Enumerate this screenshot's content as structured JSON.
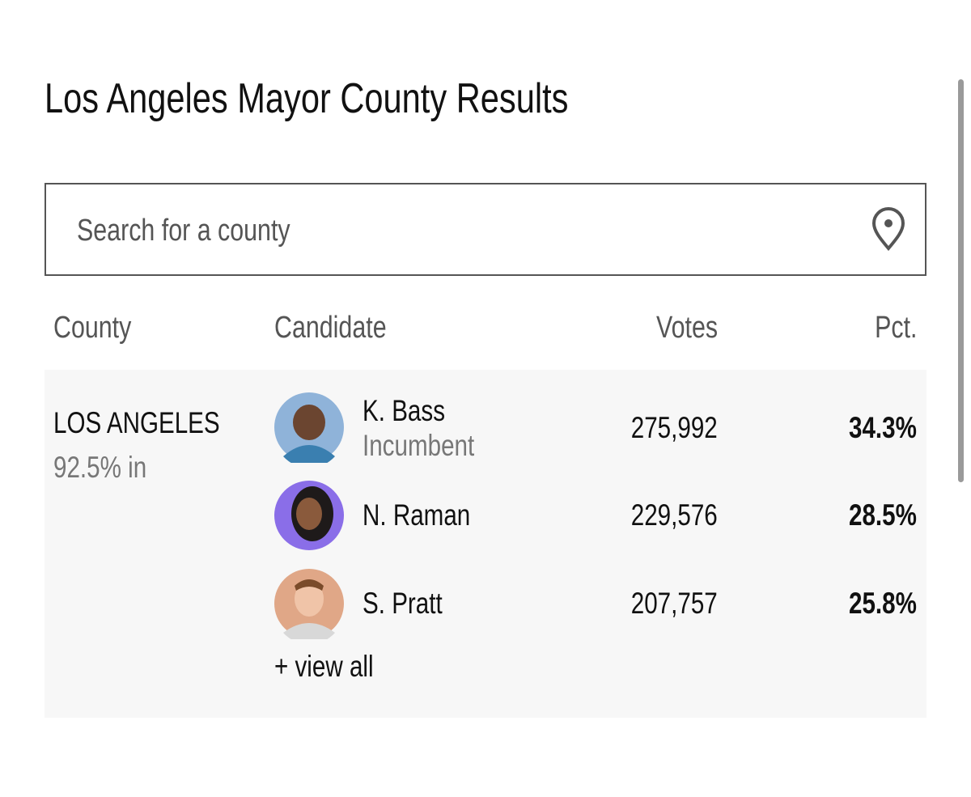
{
  "header": {
    "title": "Los Angeles Mayor County Results"
  },
  "search": {
    "placeholder": "Search for a county"
  },
  "table": {
    "columns": [
      "County",
      "Candidate",
      "Votes",
      "Pct."
    ],
    "rows": [
      {
        "county": "LOS ANGELES",
        "reporting": "92.5% in",
        "candidates": [
          {
            "name": "K. Bass",
            "note": "Incumbent",
            "votes": "275,992",
            "pct": "34.3%"
          },
          {
            "name": "N. Raman",
            "votes": "229,576",
            "pct": "28.5%"
          },
          {
            "name": "S. Pratt",
            "votes": "207,757",
            "pct": "25.8%"
          }
        ],
        "link": "+ view all"
      }
    ]
  }
}
